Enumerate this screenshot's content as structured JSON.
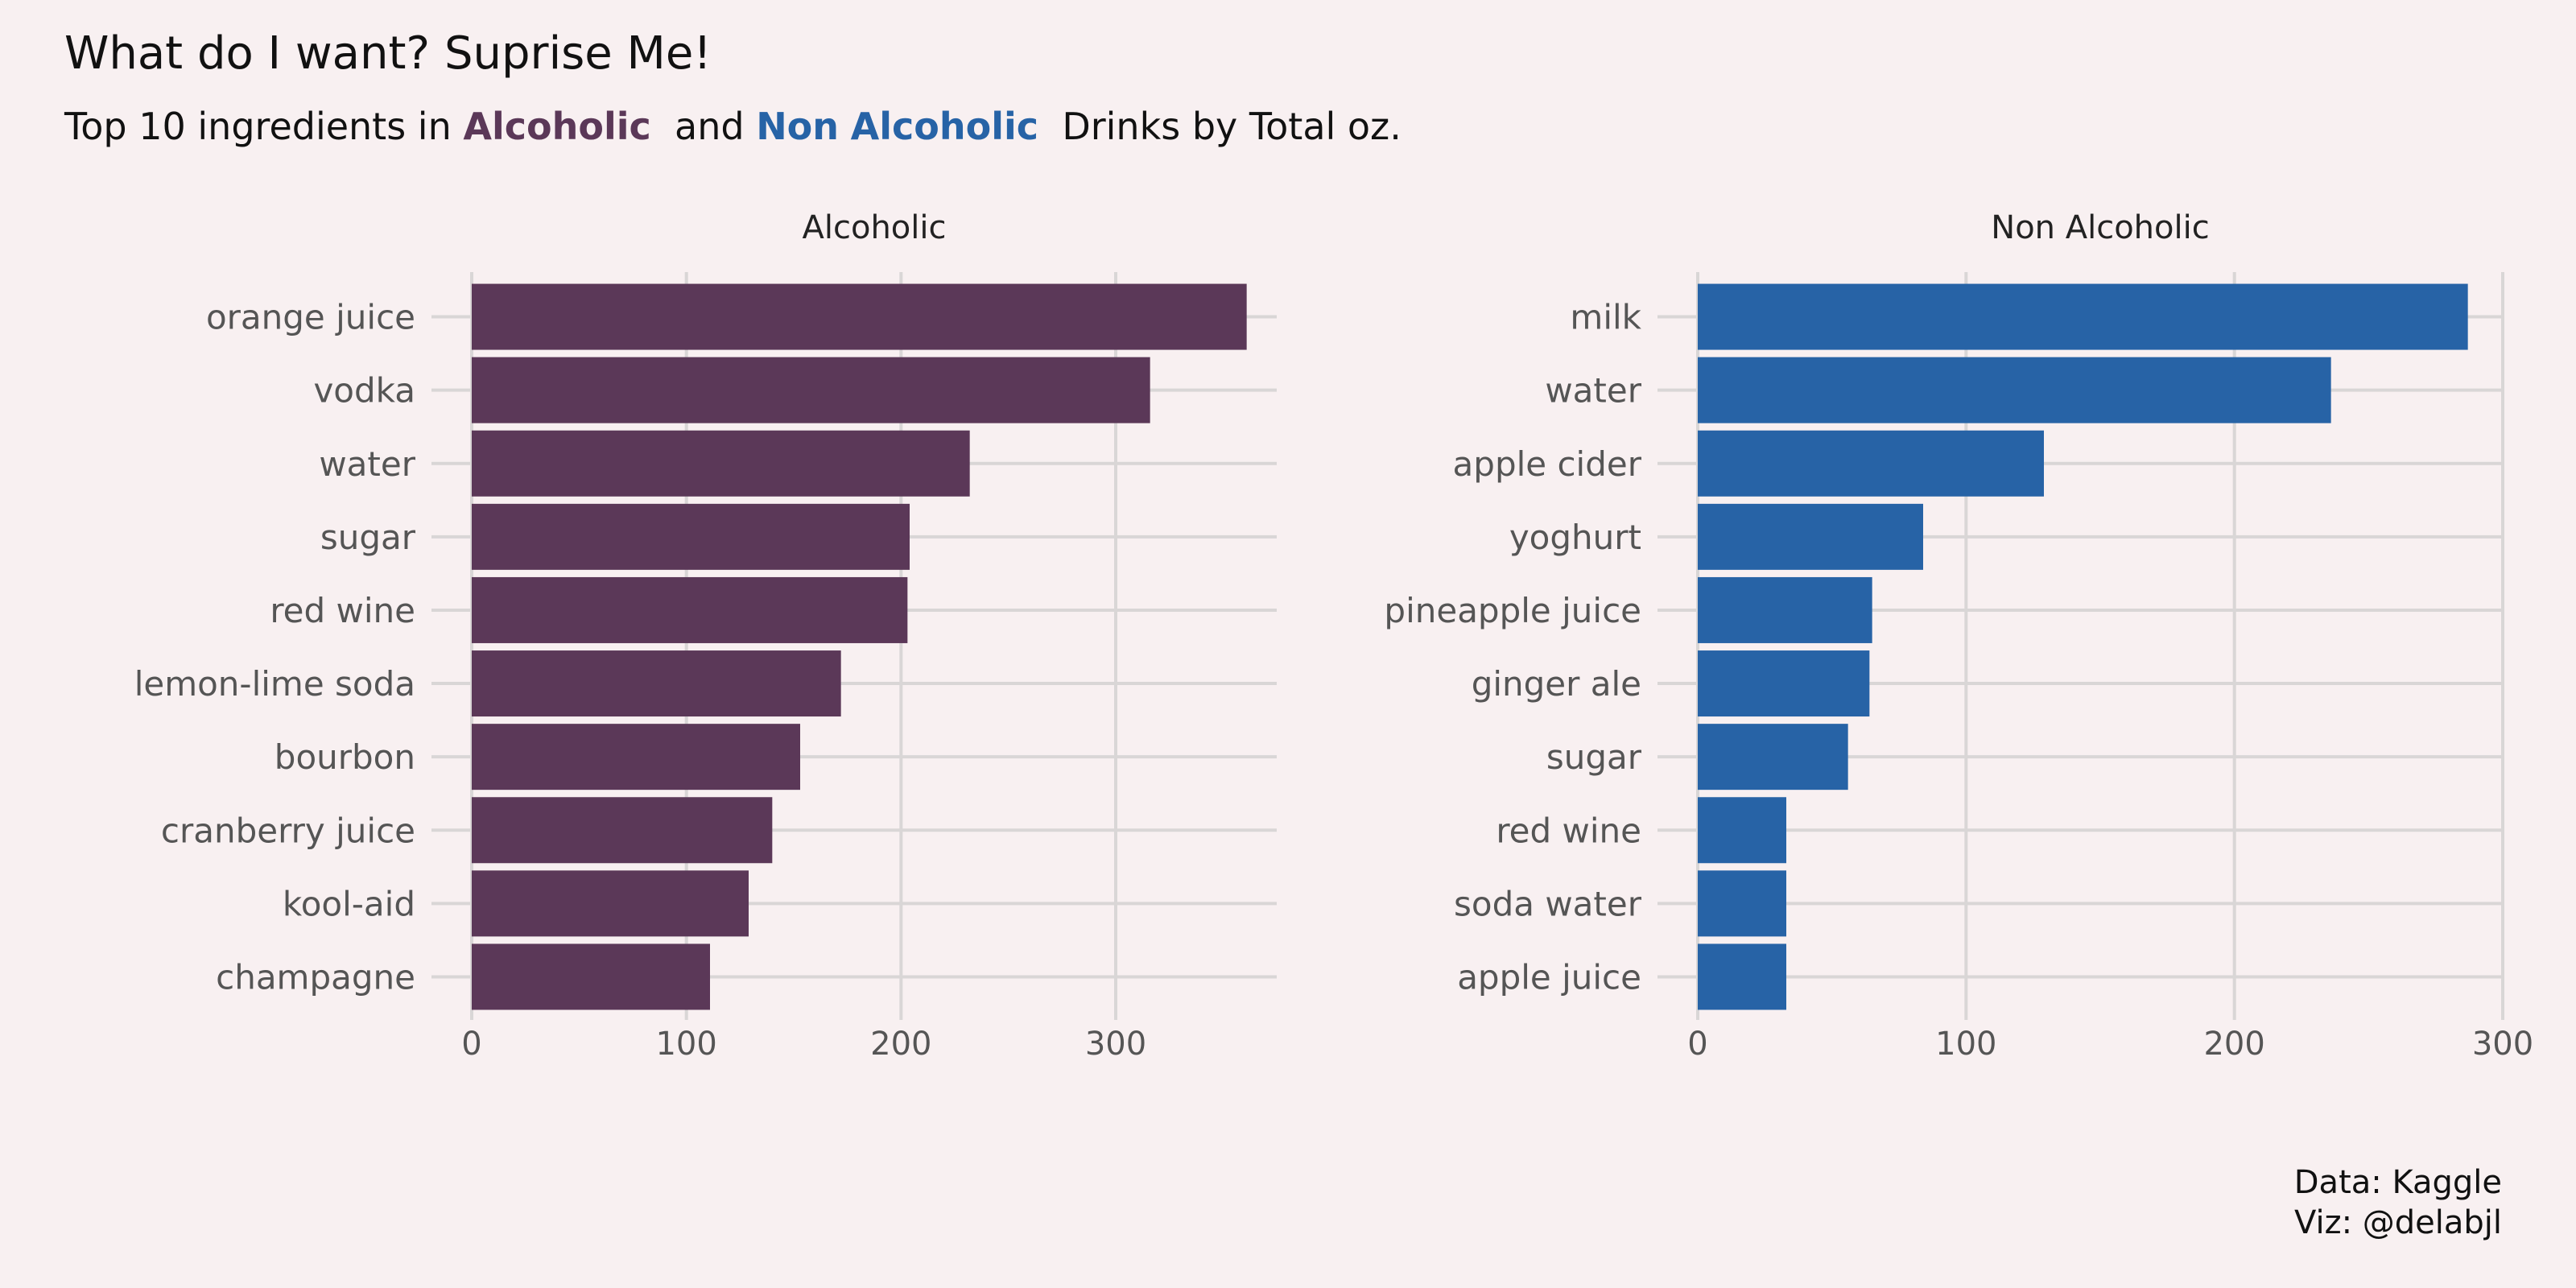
{
  "title": "What do I want? Suprise Me!",
  "subtitle": {
    "prefix": "Top 10 ingredients in ",
    "alcoholic": "Alcoholic",
    "mid": "  and ",
    "non": "Non",
    "non_tail": "Alcoholic",
    "suffix": "  Drinks by Total oz."
  },
  "caption": {
    "line1": "Data: Kaggle",
    "line2": "Viz: @delabjl"
  },
  "colors": {
    "alcoholic": "#5b3858",
    "non_alcoholic": "#2763a6",
    "grid": "#d9d6d6",
    "label": "#555555"
  },
  "chart_data": [
    {
      "type": "bar",
      "orientation": "horizontal",
      "title": "Alcoholic",
      "categories": [
        "orange juice",
        "vodka",
        "water",
        "sugar",
        "red wine",
        "lemon-lime soda",
        "bourbon",
        "cranberry juice",
        "kool-aid",
        "champagne"
      ],
      "values": [
        361,
        316,
        232,
        204,
        203,
        172,
        153,
        140,
        129,
        111
      ],
      "xlim": [
        0,
        375
      ],
      "xticks": [
        0,
        100,
        200,
        300
      ],
      "color": "#5b3858"
    },
    {
      "type": "bar",
      "orientation": "horizontal",
      "title": "Non Alcoholic",
      "categories": [
        "milk",
        "water",
        "apple cider",
        "yoghurt",
        "pineapple juice",
        "ginger ale",
        "sugar",
        "red wine",
        "soda water",
        "apple juice"
      ],
      "values": [
        287,
        236,
        129,
        84,
        65,
        64,
        56,
        33,
        33,
        33
      ],
      "xlim": [
        0,
        300
      ],
      "xticks": [
        0,
        100,
        200,
        300
      ],
      "color": "#2763a6"
    }
  ]
}
